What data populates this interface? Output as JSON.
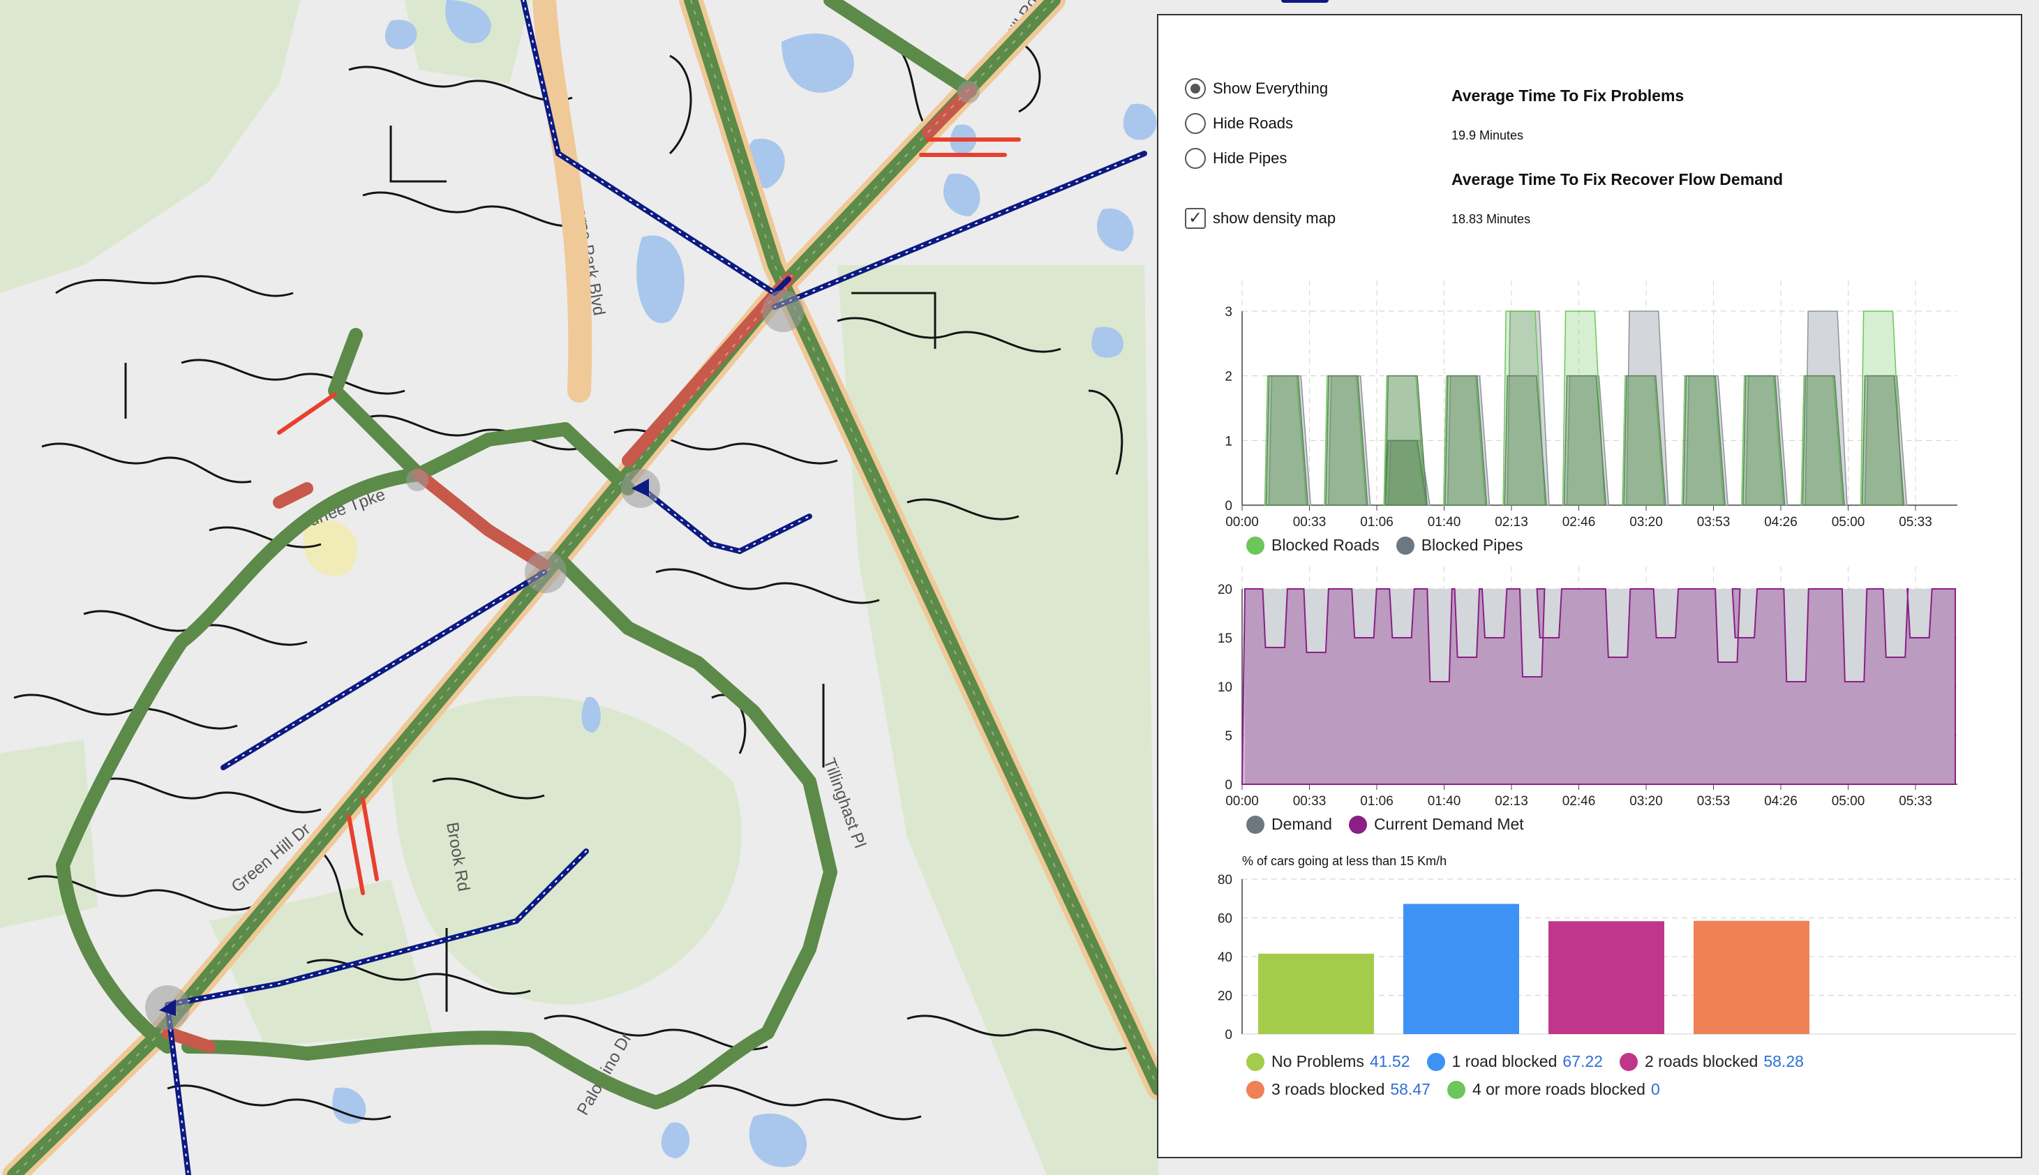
{
  "colors": {
    "map_bg": "#ececec",
    "park_green": "#dbe8cf",
    "water": "#a9c7ec",
    "road_green": "#5c8a48",
    "road_red": "#c7594a",
    "road_casing": "#f0c998",
    "pipe_blue": "#0c1a82",
    "fault_red": "#e8402e",
    "blocked_roads": "#6cc65a",
    "blocked_pipes": "#6c7780",
    "demand": "#b0b6bc",
    "current_demand_met": "#8a1f86",
    "no_problems": "#a4cc4a",
    "one_road": "#3e92f5",
    "two_roads": "#c0368a",
    "three_roads": "#ee8156",
    "four_plus": "#6cc65a"
  },
  "map": {
    "street_labels": [
      "Commerce Park Blvd",
      "Tillinghast Pl",
      "Durfee Tpke",
      "Green Hill Dr",
      "Brook Rd",
      "Cider Mill Rd",
      "Palomino Dr"
    ],
    "icons": [
      "junction-marker-icon",
      "pump-station-icon"
    ]
  },
  "controls": {
    "radio_options": [
      {
        "label": "Show Everything",
        "selected": true
      },
      {
        "label": "Hide Roads",
        "selected": false
      },
      {
        "label": "Hide Pipes",
        "selected": false
      }
    ],
    "density_label": "show density map",
    "density_checked": true
  },
  "stats": {
    "avg_fix_title": "Average Time To Fix Problems",
    "avg_fix_value": "19.9 Minutes",
    "avg_flow_title": "Average Time To Fix Recover Flow Demand",
    "avg_flow_value": "18.83 Minutes"
  },
  "chart_data": [
    {
      "type": "area",
      "x_labels": [
        "00:00",
        "00:33",
        "01:06",
        "01:40",
        "02:13",
        "02:46",
        "03:20",
        "03:53",
        "04:26",
        "05:00",
        "05:33"
      ],
      "ylim": [
        0,
        3
      ],
      "yticks": [
        0,
        1,
        2,
        3
      ],
      "grid": true,
      "legend_position": "bottom",
      "series": [
        {
          "name": "Blocked Roads",
          "segments": [
            [
              1,
              2
            ],
            [
              2,
              2
            ],
            [
              3,
              2
            ],
            [
              3,
              1
            ],
            [
              4,
              2
            ],
            [
              5,
              3
            ],
            [
              6,
              3
            ],
            [
              7,
              2
            ],
            [
              8,
              2
            ],
            [
              9,
              2
            ],
            [
              10,
              2
            ],
            [
              11,
              3
            ]
          ]
        },
        {
          "name": "Blocked Pipes",
          "segments": [
            [
              1,
              2
            ],
            [
              2,
              2
            ],
            [
              3,
              1
            ],
            [
              4,
              2
            ],
            [
              5,
              3
            ],
            [
              6,
              2
            ],
            [
              7,
              3
            ],
            [
              8,
              2
            ],
            [
              9,
              2
            ],
            [
              10,
              3
            ],
            [
              11,
              2
            ]
          ]
        }
      ]
    },
    {
      "type": "area",
      "x_labels": [
        "00:00",
        "00:33",
        "01:06",
        "01:40",
        "02:13",
        "02:46",
        "03:20",
        "03:53",
        "04:26",
        "05:00",
        "05:33"
      ],
      "ylim": [
        0,
        20
      ],
      "yticks": [
        0,
        5,
        10,
        15,
        20
      ],
      "grid": true,
      "legend_position": "bottom",
      "series": [
        {
          "name": "Demand",
          "constant": 20
        },
        {
          "name": "Current Demand Met",
          "dips": [
            [
              0.3,
              14
            ],
            [
              0.9,
              13.5
            ],
            [
              1.6,
              15
            ],
            [
              2.15,
              15
            ],
            [
              2.7,
              10.5
            ],
            [
              3.1,
              13
            ],
            [
              3.5,
              15
            ],
            [
              4.05,
              11
            ],
            [
              4.3,
              15
            ],
            [
              5.3,
              13
            ],
            [
              6.0,
              15
            ],
            [
              6.9,
              12.5
            ],
            [
              7.15,
              15
            ],
            [
              7.9,
              10.5
            ],
            [
              8.75,
              10.5
            ],
            [
              9.35,
              13
            ],
            [
              9.7,
              15
            ]
          ]
        }
      ]
    },
    {
      "type": "bar",
      "title": "% of cars going at less than 15 Km/h",
      "categories": [
        "No Problems",
        "1 road blocked",
        "2 roads blocked",
        "3 roads blocked"
      ],
      "values": [
        41.52,
        67.22,
        58.28,
        58.47
      ],
      "ylim": [
        0,
        80
      ],
      "yticks": [
        0,
        20,
        40,
        60,
        80
      ],
      "grid": true,
      "legend": [
        {
          "label": "No Problems",
          "value": "41.52",
          "color_key": "no_problems"
        },
        {
          "label": "1 road blocked",
          "value": "67.22",
          "color_key": "one_road"
        },
        {
          "label": "2 roads blocked",
          "value": "58.28",
          "color_key": "two_roads"
        },
        {
          "label": "3 roads blocked",
          "value": "58.47",
          "color_key": "three_roads"
        },
        {
          "label": "4 or more roads blocked",
          "value": "0",
          "color_key": "four_plus"
        }
      ]
    }
  ]
}
